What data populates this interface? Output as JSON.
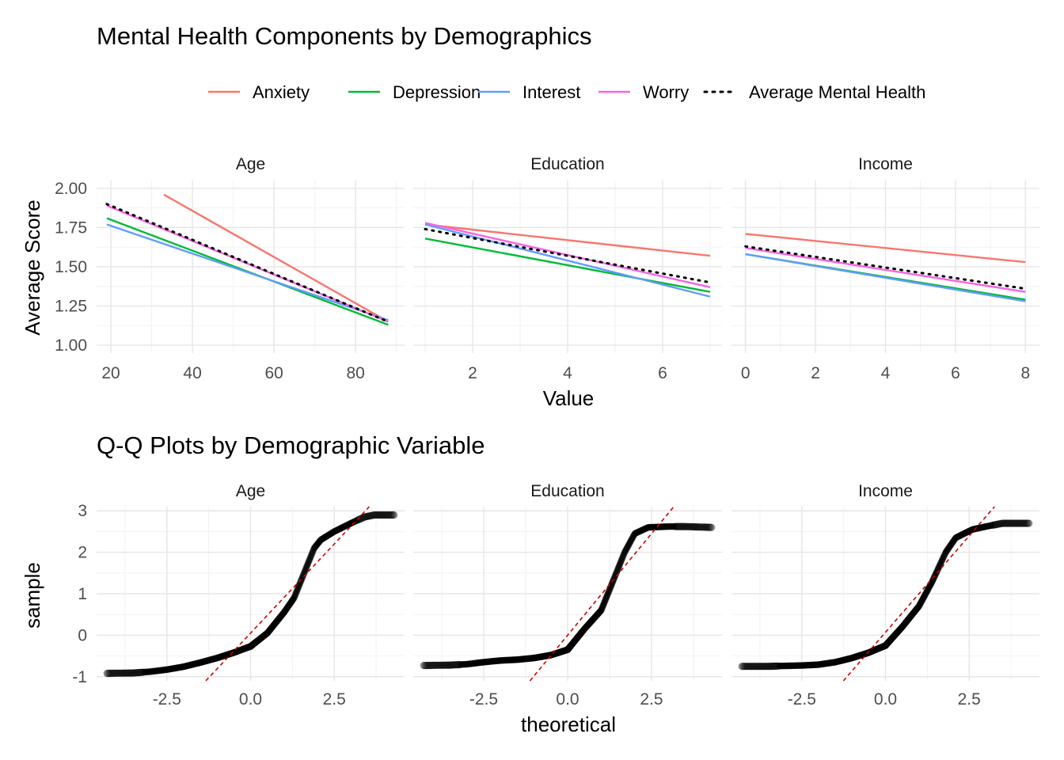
{
  "top": {
    "title": "Mental Health Components by Demographics",
    "xlabel": "Value",
    "ylabel": "Average Score"
  },
  "bottom": {
    "title": "Q-Q Plots by Demographic Variable",
    "xlabel": "theoretical",
    "ylabel": "sample"
  },
  "legend": [
    {
      "name": "Anxiety",
      "color": "#F8766D",
      "style": "solid"
    },
    {
      "name": "Depression",
      "color": "#00BA38",
      "style": "solid"
    },
    {
      "name": "Interest",
      "color": "#619CFF",
      "style": "solid"
    },
    {
      "name": "Worry",
      "color": "#F564E3",
      "style": "solid"
    },
    {
      "name": "Average Mental Health",
      "color": "#000000",
      "style": "dotted"
    }
  ],
  "chart_data": [
    {
      "type": "line",
      "title": "Mental Health Components by Demographics",
      "xlabel": "Value",
      "ylabel": "Average Score",
      "ylim": [
        0.95,
        2.05
      ],
      "y_ticks": [
        "1.00",
        "1.25",
        "1.50",
        "1.75",
        "2.00"
      ],
      "grid": true,
      "legend_position": "top",
      "facets": [
        {
          "label": "Age",
          "xlim": [
            16.5,
            92
          ],
          "x_ticks": [
            "20",
            "40",
            "60",
            "80"
          ],
          "series": [
            {
              "name": "Anxiety",
              "x": [
                33,
                88
              ],
              "y": [
                1.96,
                1.15
              ]
            },
            {
              "name": "Depression",
              "x": [
                19,
                88
              ],
              "y": [
                1.81,
                1.13
              ]
            },
            {
              "name": "Interest",
              "x": [
                19,
                88
              ],
              "y": [
                1.77,
                1.16
              ]
            },
            {
              "name": "Worry",
              "x": [
                19,
                88
              ],
              "y": [
                1.89,
                1.15
              ]
            },
            {
              "name": "Average Mental Health",
              "x": [
                19,
                88
              ],
              "y": [
                1.9,
                1.15
              ]
            }
          ]
        },
        {
          "label": "Education",
          "xlim": [
            0.75,
            7.25
          ],
          "x_ticks": [
            "2",
            "4",
            "6"
          ],
          "series": [
            {
              "name": "Anxiety",
              "x": [
                1,
                7
              ],
              "y": [
                1.77,
                1.57
              ]
            },
            {
              "name": "Depression",
              "x": [
                1,
                7
              ],
              "y": [
                1.68,
                1.34
              ]
            },
            {
              "name": "Interest",
              "x": [
                1,
                7
              ],
              "y": [
                1.77,
                1.31
              ]
            },
            {
              "name": "Worry",
              "x": [
                1,
                7
              ],
              "y": [
                1.78,
                1.37
              ]
            },
            {
              "name": "Average Mental Health",
              "x": [
                1,
                7
              ],
              "y": [
                1.74,
                1.4
              ]
            }
          ]
        },
        {
          "label": "Income",
          "xlim": [
            -0.4,
            8.4
          ],
          "x_ticks": [
            "0",
            "2",
            "4",
            "6",
            "8"
          ],
          "series": [
            {
              "name": "Anxiety",
              "x": [
                0,
                8
              ],
              "y": [
                1.71,
                1.53
              ]
            },
            {
              "name": "Depression",
              "x": [
                0,
                8
              ],
              "y": [
                1.58,
                1.29
              ]
            },
            {
              "name": "Interest",
              "x": [
                0,
                8
              ],
              "y": [
                1.58,
                1.28
              ]
            },
            {
              "name": "Worry",
              "x": [
                0,
                8
              ],
              "y": [
                1.62,
                1.34
              ]
            },
            {
              "name": "Average Mental Health",
              "x": [
                0,
                8
              ],
              "y": [
                1.63,
                1.36
              ]
            }
          ]
        }
      ]
    },
    {
      "type": "scatter",
      "title": "Q-Q Plots by Demographic Variable",
      "xlabel": "theoretical",
      "ylabel": "sample",
      "xlim": [
        -4.6,
        4.6
      ],
      "ylim": [
        -1.1,
        3.1
      ],
      "x_ticks": [
        "-2.5",
        "0.0",
        "2.5"
      ],
      "y_ticks": [
        "-1",
        "0",
        "1",
        "2",
        "3"
      ],
      "grid": true,
      "facets": [
        {
          "label": "Age",
          "qq_points": [
            [
              -4.3,
              -0.92
            ],
            [
              -3.5,
              -0.91
            ],
            [
              -3.0,
              -0.88
            ],
            [
              -2.5,
              -0.83
            ],
            [
              -2.0,
              -0.76
            ],
            [
              -1.5,
              -0.66
            ],
            [
              -1.0,
              -0.55
            ],
            [
              -0.5,
              -0.42
            ],
            [
              0.0,
              -0.27
            ],
            [
              0.5,
              0.05
            ],
            [
              1.0,
              0.55
            ],
            [
              1.3,
              0.9
            ],
            [
              1.6,
              1.5
            ],
            [
              1.9,
              2.1
            ],
            [
              2.1,
              2.3
            ],
            [
              2.5,
              2.5
            ],
            [
              3.0,
              2.7
            ],
            [
              3.4,
              2.85
            ],
            [
              3.7,
              2.9
            ],
            [
              4.3,
              2.9
            ]
          ],
          "ref_line": {
            "slope": 0.86,
            "intercept": 0.05
          }
        },
        {
          "label": "Education",
          "qq_points": [
            [
              -4.3,
              -0.73
            ],
            [
              -3.5,
              -0.72
            ],
            [
              -3.0,
              -0.7
            ],
            [
              -2.5,
              -0.65
            ],
            [
              -2.0,
              -0.61
            ],
            [
              -1.5,
              -0.59
            ],
            [
              -1.0,
              -0.55
            ],
            [
              -0.5,
              -0.48
            ],
            [
              0.0,
              -0.35
            ],
            [
              0.5,
              0.15
            ],
            [
              1.0,
              0.6
            ],
            [
              1.4,
              1.4
            ],
            [
              1.7,
              2.0
            ],
            [
              2.0,
              2.45
            ],
            [
              2.4,
              2.6
            ],
            [
              3.0,
              2.62
            ],
            [
              3.5,
              2.62
            ],
            [
              4.3,
              2.6
            ]
          ],
          "ref_line": {
            "slope": 0.98,
            "intercept": 0.0
          }
        },
        {
          "label": "Income",
          "qq_points": [
            [
              -4.3,
              -0.75
            ],
            [
              -3.5,
              -0.75
            ],
            [
              -3.0,
              -0.74
            ],
            [
              -2.5,
              -0.73
            ],
            [
              -2.0,
              -0.71
            ],
            [
              -1.5,
              -0.65
            ],
            [
              -1.0,
              -0.55
            ],
            [
              -0.5,
              -0.42
            ],
            [
              0.0,
              -0.25
            ],
            [
              0.5,
              0.2
            ],
            [
              1.0,
              0.7
            ],
            [
              1.4,
              1.3
            ],
            [
              1.8,
              2.0
            ],
            [
              2.1,
              2.35
            ],
            [
              2.6,
              2.55
            ],
            [
              3.0,
              2.62
            ],
            [
              3.5,
              2.7
            ],
            [
              4.3,
              2.7
            ]
          ],
          "ref_line": {
            "slope": 0.93,
            "intercept": 0.07
          }
        }
      ]
    }
  ]
}
